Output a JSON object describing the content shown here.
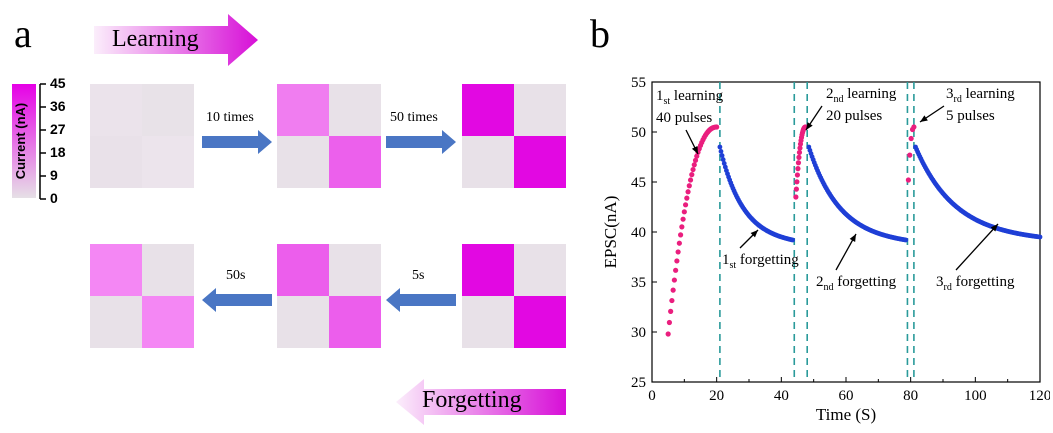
{
  "panel_a": {
    "letter": "a",
    "learning_label": "Learning",
    "forgetting_label": "Forgetting",
    "colorbar": {
      "title": "Current (nA)",
      "ticks": [
        "45",
        "36",
        "27",
        "18",
        "9",
        "0"
      ],
      "low_color": "#e6e0e6",
      "high_color": "#e600e6"
    },
    "arrows": {
      "top_1": "10 times",
      "top_2": "50 times",
      "bottom_1": "50s",
      "bottom_2": "5s"
    },
    "grids": [
      {
        "id": "top-1",
        "cells": [
          "#ebe3eb",
          "#e8e2e8",
          "#e9e1e9",
          "#ece4ec"
        ]
      },
      {
        "id": "top-2",
        "cells": [
          "#f07df0",
          "#e8e1e8",
          "#e8e1e8",
          "#ec60ec"
        ]
      },
      {
        "id": "top-3",
        "cells": [
          "#e208e2",
          "#e8e1e8",
          "#e8e1e8",
          "#e208e2"
        ]
      },
      {
        "id": "bottom-1",
        "cells": [
          "#f487f4",
          "#e8e1e8",
          "#e8e1e8",
          "#f487f4"
        ]
      },
      {
        "id": "bottom-2",
        "cells": [
          "#ec5eec",
          "#e8e1e8",
          "#e8e1e8",
          "#ec5eec"
        ]
      },
      {
        "id": "bottom-3",
        "cells": [
          "#e208e2",
          "#e8e1e8",
          "#e8e1e8",
          "#e208e2"
        ]
      }
    ]
  },
  "panel_b": {
    "letter": "b",
    "annotations": {
      "l1_main": "1",
      "l1_sub": "st",
      "l1_rest": " learning",
      "l1_pulses": "40 pulses",
      "l2_main": "2",
      "l2_sub": "nd",
      "l2_rest": " learning",
      "l2_pulses": "20 pulses",
      "l3_main": "3",
      "l3_sub": "rd",
      "l3_rest": " learning",
      "l3_pulses": "5 pulses",
      "f1_main": "1",
      "f1_sub": "st",
      "f1_rest": " forgetting",
      "f2_main": "2",
      "f2_sub": "nd",
      "f2_rest": " forgetting",
      "f3_main": "3",
      "f3_sub": "rd",
      "f3_rest": " forgetting"
    }
  },
  "chart_data": {
    "type": "scatter",
    "xlabel": "Time (S)",
    "ylabel": "EPSC(nA)",
    "xlim": [
      0,
      120
    ],
    "ylim": [
      25,
      55
    ],
    "xticks": [
      "0",
      "20",
      "40",
      "60",
      "80",
      "100",
      "120"
    ],
    "yticks": [
      "25",
      "30",
      "35",
      "40",
      "45",
      "50",
      "55"
    ],
    "learning_color": "#ea1e7e",
    "forgetting_color": "#1f3fd6",
    "divider_color": "#2a9a9a",
    "dividers_x": [
      21,
      44,
      48,
      79,
      81
    ],
    "series": [
      {
        "phase": "learning",
        "x_start": 5,
        "x_end": 20,
        "count": 40,
        "y_start": 29.8,
        "y_end": 50.5
      },
      {
        "phase": "forgetting",
        "x_start": 21,
        "x_end": 43.5,
        "y_start": 48.5,
        "y_end": 39.2
      },
      {
        "phase": "learning",
        "x_start": 44.5,
        "x_end": 47.5,
        "count": 20,
        "y_start": 43.5,
        "y_end": 50.5
      },
      {
        "phase": "forgetting",
        "x_start": 48.5,
        "x_end": 78.5,
        "y_start": 48.5,
        "y_end": 39.2
      },
      {
        "phase": "learning",
        "x_start": 79.3,
        "x_end": 81,
        "count": 5,
        "y_start": 45.2,
        "y_end": 50.5
      },
      {
        "phase": "forgetting",
        "x_start": 81.5,
        "x_end": 120,
        "y_start": 48.5,
        "y_end": 39.5
      }
    ]
  }
}
